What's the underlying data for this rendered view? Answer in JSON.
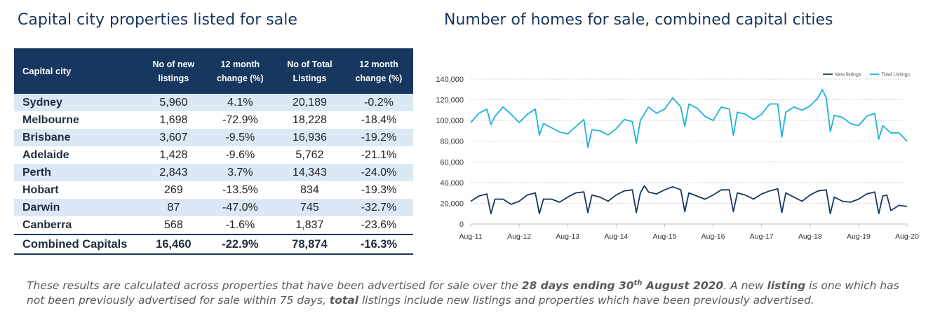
{
  "table_title": "Capital city properties listed for sale",
  "chart_title": "Number of homes for sale, combined capital cities",
  "table": {
    "headers": [
      "Capital city",
      "No of new listings",
      "12 month change (%)",
      "No of Total Listings",
      "12 month change (%)"
    ],
    "rows": [
      {
        "city": "Sydney",
        "new": "5,960",
        "new_change": "4.1%",
        "total": "20,189",
        "total_change": "-0.2%"
      },
      {
        "city": "Melbourne",
        "new": "1,698",
        "new_change": "-72.9%",
        "total": "18,228",
        "total_change": "-18.4%"
      },
      {
        "city": "Brisbane",
        "new": "3,607",
        "new_change": "-9.5%",
        "total": "16,936",
        "total_change": "-19.2%"
      },
      {
        "city": "Adelaide",
        "new": "1,428",
        "new_change": "-9.6%",
        "total": "5,762",
        "total_change": "-21.1%"
      },
      {
        "city": "Perth",
        "new": "2,843",
        "new_change": "3.7%",
        "total": "14,343",
        "total_change": "-24.0%"
      },
      {
        "city": "Hobart",
        "new": "269",
        "new_change": "-13.5%",
        "total": "834",
        "total_change": "-19.3%"
      },
      {
        "city": "Darwin",
        "new": "87",
        "new_change": "-47.0%",
        "total": "745",
        "total_change": "-32.7%"
      },
      {
        "city": "Canberra",
        "new": "568",
        "new_change": "-1.6%",
        "total": "1,837",
        "total_change": "-23.6%"
      }
    ],
    "total_row": {
      "city": "Combined Capitals",
      "new": "16,460",
      "new_change": "-22.9%",
      "total": "78,874",
      "total_change": "-16.3%"
    }
  },
  "chart_data": {
    "type": "line",
    "x_start": "Aug-11",
    "x_end": "Aug-20",
    "xticks": [
      "Aug-11",
      "Aug-12",
      "Aug-13",
      "Aug-14",
      "Aug-15",
      "Aug-16",
      "Aug-17",
      "Aug-18",
      "Aug-19",
      "Aug-20"
    ],
    "ylim": [
      0,
      140000
    ],
    "yticks": [
      "0",
      "20,000",
      "40,000",
      "60,000",
      "80,000",
      "100,000",
      "120,000",
      "140,000"
    ],
    "legend_position": "top-right",
    "grid": "horizontal dotted",
    "series": [
      {
        "name": "New listings",
        "color": "#17375e",
        "points": [
          [
            "Aug-11",
            22000
          ],
          [
            "Oct-11",
            27000
          ],
          [
            "Dec-11",
            29000
          ],
          [
            "Jan-12",
            10000
          ],
          [
            "Feb-12",
            24000
          ],
          [
            "Apr-12",
            24000
          ],
          [
            "Jun-12",
            19000
          ],
          [
            "Aug-12",
            22000
          ],
          [
            "Oct-12",
            28000
          ],
          [
            "Dec-12",
            30000
          ],
          [
            "Jan-13",
            10000
          ],
          [
            "Feb-13",
            24000
          ],
          [
            "Apr-13",
            24000
          ],
          [
            "Jun-13",
            21000
          ],
          [
            "Aug-13",
            26000
          ],
          [
            "Oct-13",
            30000
          ],
          [
            "Dec-13",
            31000
          ],
          [
            "Jan-14",
            11000
          ],
          [
            "Feb-14",
            28000
          ],
          [
            "Apr-14",
            26000
          ],
          [
            "Jun-14",
            22000
          ],
          [
            "Aug-14",
            28000
          ],
          [
            "Oct-14",
            32000
          ],
          [
            "Dec-14",
            33000
          ],
          [
            "Jan-15",
            11000
          ],
          [
            "Feb-15",
            30000
          ],
          [
            "Mar-15",
            37000
          ],
          [
            "Apr-15",
            31000
          ],
          [
            "Jun-15",
            29000
          ],
          [
            "Aug-15",
            33000
          ],
          [
            "Oct-15",
            36000
          ],
          [
            "Dec-15",
            33000
          ],
          [
            "Jan-16",
            12000
          ],
          [
            "Feb-16",
            30000
          ],
          [
            "Apr-16",
            27000
          ],
          [
            "Jun-16",
            24000
          ],
          [
            "Aug-16",
            28000
          ],
          [
            "Oct-16",
            33000
          ],
          [
            "Dec-16",
            33000
          ],
          [
            "Jan-17",
            12000
          ],
          [
            "Feb-17",
            30000
          ],
          [
            "Apr-17",
            28000
          ],
          [
            "Jun-17",
            24000
          ],
          [
            "Aug-17",
            29000
          ],
          [
            "Oct-17",
            32000
          ],
          [
            "Dec-17",
            34000
          ],
          [
            "Jan-18",
            11000
          ],
          [
            "Feb-18",
            30000
          ],
          [
            "Apr-18",
            26000
          ],
          [
            "Jun-18",
            22000
          ],
          [
            "Aug-18",
            28000
          ],
          [
            "Oct-18",
            32000
          ],
          [
            "Dec-18",
            33000
          ],
          [
            "Jan-19",
            10000
          ],
          [
            "Feb-19",
            26000
          ],
          [
            "Apr-19",
            22000
          ],
          [
            "Jun-19",
            21000
          ],
          [
            "Aug-19",
            24000
          ],
          [
            "Oct-19",
            29000
          ],
          [
            "Dec-19",
            31000
          ],
          [
            "Jan-20",
            10000
          ],
          [
            "Feb-20",
            27000
          ],
          [
            "Mar-20",
            28000
          ],
          [
            "Apr-20",
            13000
          ],
          [
            "Jun-20",
            18000
          ],
          [
            "Aug-20",
            17000
          ]
        ]
      },
      {
        "name": "Total Listings",
        "color": "#1fb2d8",
        "points": [
          [
            "Aug-11",
            98000
          ],
          [
            "Oct-11",
            107000
          ],
          [
            "Dec-11",
            111000
          ],
          [
            "Jan-12",
            96000
          ],
          [
            "Feb-12",
            104000
          ],
          [
            "Apr-12",
            113000
          ],
          [
            "Jun-12",
            106000
          ],
          [
            "Aug-12",
            98000
          ],
          [
            "Oct-12",
            106000
          ],
          [
            "Dec-12",
            111000
          ],
          [
            "Jan-13",
            86000
          ],
          [
            "Feb-13",
            97000
          ],
          [
            "Apr-13",
            93000
          ],
          [
            "Jun-13",
            89000
          ],
          [
            "Aug-13",
            87000
          ],
          [
            "Oct-13",
            94000
          ],
          [
            "Dec-13",
            101000
          ],
          [
            "Jan-14",
            74000
          ],
          [
            "Feb-14",
            91000
          ],
          [
            "Apr-14",
            90000
          ],
          [
            "Jun-14",
            86000
          ],
          [
            "Aug-14",
            92000
          ],
          [
            "Oct-14",
            101000
          ],
          [
            "Dec-14",
            99000
          ],
          [
            "Jan-15",
            78000
          ],
          [
            "Feb-15",
            100000
          ],
          [
            "Apr-15",
            113000
          ],
          [
            "Jun-15",
            107000
          ],
          [
            "Aug-15",
            111000
          ],
          [
            "Oct-15",
            122000
          ],
          [
            "Dec-15",
            113000
          ],
          [
            "Jan-16",
            94000
          ],
          [
            "Feb-16",
            116000
          ],
          [
            "Apr-16",
            112000
          ],
          [
            "Jun-16",
            104000
          ],
          [
            "Aug-16",
            100000
          ],
          [
            "Oct-16",
            113000
          ],
          [
            "Dec-16",
            111000
          ],
          [
            "Jan-17",
            86000
          ],
          [
            "Feb-17",
            108000
          ],
          [
            "Apr-17",
            106000
          ],
          [
            "Jun-17",
            101000
          ],
          [
            "Aug-17",
            106000
          ],
          [
            "Oct-17",
            116000
          ],
          [
            "Dec-17",
            116000
          ],
          [
            "Jan-18",
            84000
          ],
          [
            "Feb-18",
            108000
          ],
          [
            "Apr-18",
            113000
          ],
          [
            "Jun-18",
            110000
          ],
          [
            "Aug-18",
            114000
          ],
          [
            "Oct-18",
            122000
          ],
          [
            "Nov-18",
            130000
          ],
          [
            "Dec-18",
            122000
          ],
          [
            "Jan-19",
            89000
          ],
          [
            "Feb-19",
            105000
          ],
          [
            "Apr-19",
            103000
          ],
          [
            "Jun-19",
            97000
          ],
          [
            "Aug-19",
            95000
          ],
          [
            "Oct-19",
            104000
          ],
          [
            "Dec-19",
            107000
          ],
          [
            "Jan-20",
            82000
          ],
          [
            "Feb-20",
            95000
          ],
          [
            "Apr-20",
            88000
          ],
          [
            "Jun-20",
            88000
          ],
          [
            "Aug-20",
            80000
          ]
        ]
      }
    ]
  },
  "footnote": {
    "part1": "These results are calculated across properties that have been advertised for sale over the ",
    "bold1_pre": "28 days ending 30",
    "bold1_sup": "th",
    "bold1_post": " August 2020",
    "part2": ".  A new ",
    "bold2": "listing",
    "part3": " is one which has not been previously advertised for sale within 75 days, ",
    "bold3": "total",
    "part4": " listings include new listings and properties which have been previously advertised."
  }
}
